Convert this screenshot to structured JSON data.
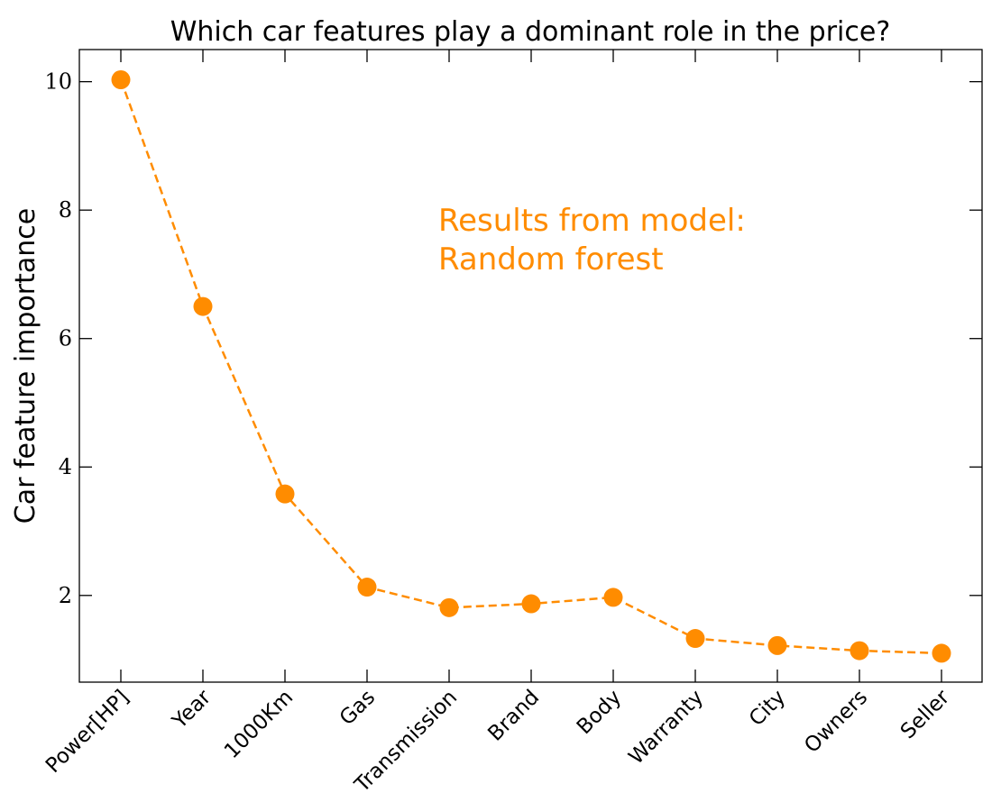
{
  "chart_data": {
    "type": "line",
    "title": "Which car features play a dominant role in the price?",
    "xlabel": "",
    "ylabel": "Car feature importance",
    "categories": [
      "Power[HP]",
      "Year",
      "1000Km",
      "Gas",
      "Transmission",
      "Brand",
      "Body",
      "Warranty",
      "City",
      "Owners",
      "Seller"
    ],
    "series": [
      {
        "values": [
          10.03,
          6.5,
          3.58,
          2.13,
          1.81,
          1.87,
          1.97,
          1.33,
          1.22,
          1.14,
          1.1
        ],
        "color": "#ff8c00",
        "line_style": "dashed",
        "marker": "circle"
      }
    ],
    "ylim": [
      0.65,
      10.5
    ],
    "yticks": [
      2,
      4,
      6,
      8,
      10
    ],
    "ytick_labels": [
      "2",
      "4",
      "6",
      "8",
      "10"
    ],
    "grid": false,
    "annotation": {
      "lines": [
        "Results from model:",
        "Random forest"
      ],
      "color": "#ff8c00"
    }
  }
}
